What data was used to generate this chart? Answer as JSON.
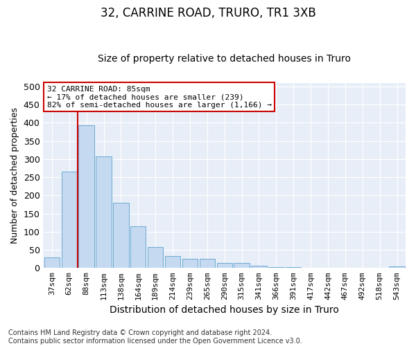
{
  "title": "32, CARRINE ROAD, TRURO, TR1 3XB",
  "subtitle": "Size of property relative to detached houses in Truro",
  "xlabel": "Distribution of detached houses by size in Truro",
  "ylabel": "Number of detached properties",
  "categories": [
    "37sqm",
    "62sqm",
    "88sqm",
    "113sqm",
    "138sqm",
    "164sqm",
    "189sqm",
    "214sqm",
    "239sqm",
    "265sqm",
    "290sqm",
    "315sqm",
    "341sqm",
    "366sqm",
    "391sqm",
    "417sqm",
    "442sqm",
    "467sqm",
    "492sqm",
    "518sqm",
    "543sqm"
  ],
  "values": [
    29,
    265,
    393,
    308,
    180,
    114,
    57,
    33,
    25,
    25,
    14,
    14,
    6,
    2,
    2,
    1,
    1,
    0,
    0,
    0,
    5
  ],
  "bar_color": "#c5d9f0",
  "bar_edge_color": "#6aaad4",
  "vline_color": "#cc0000",
  "annotation_text": "32 CARRINE ROAD: 85sqm\n← 17% of detached houses are smaller (239)\n82% of semi-detached houses are larger (1,166) →",
  "annotation_box_color": "#ffffff",
  "annotation_box_edge": "#cc0000",
  "ylim": [
    0,
    510
  ],
  "yticks": [
    0,
    50,
    100,
    150,
    200,
    250,
    300,
    350,
    400,
    450,
    500
  ],
  "footer": "Contains HM Land Registry data © Crown copyright and database right 2024.\nContains public sector information licensed under the Open Government Licence v3.0.",
  "bg_color": "#ffffff",
  "plot_bg": "#e8eef7",
  "grid_color": "#ffffff",
  "title_fontsize": 12,
  "subtitle_fontsize": 10,
  "axis_label_fontsize": 9,
  "tick_fontsize": 8,
  "footer_fontsize": 7
}
